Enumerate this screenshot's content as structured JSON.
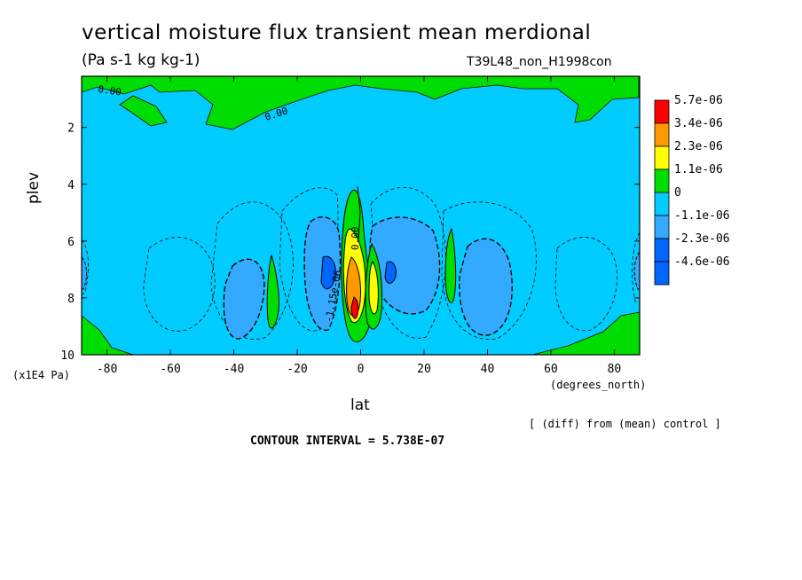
{
  "title": "vertical moisture flux transient mean merdional",
  "units": "(Pa s-1 kg kg-1)",
  "run_label": "T39L48_non_H1998con",
  "y_axis_unit": "(x1E4 Pa)",
  "x_axis_unit": "(degrees_north)",
  "diff_note": "[ (diff) from (mean) control ]",
  "contour_interval": "CONTOUR INTERVAL = 5.738E-07",
  "chart_data": {
    "type": "heatmap",
    "xlabel": "lat",
    "ylabel": "plev",
    "xlim": [
      -88,
      88
    ],
    "ylim": [
      10,
      0.2
    ],
    "x_ticks": [
      -80,
      -60,
      -40,
      -20,
      0,
      20,
      40,
      60,
      80
    ],
    "x_tick_labels": [
      "-80",
      "-60",
      "-40",
      "-20",
      "0",
      "20",
      "40",
      "60",
      "80"
    ],
    "y_ticks": [
      2,
      4,
      6,
      8,
      10
    ],
    "y_tick_labels": [
      "2",
      "4",
      "6",
      "8",
      "10"
    ],
    "legend": {
      "placement": "right",
      "entries": [
        {
          "label": "5.7e-06",
          "color": "#ff0000"
        },
        {
          "label": "3.4e-06",
          "color": "#ff9900"
        },
        {
          "label": "2.3e-06",
          "color": "#ffff00"
        },
        {
          "label": "1.1e-06",
          "color": "#00dd00"
        },
        {
          "label": "0",
          "color": "#00ccff"
        },
        {
          "label": "-1.1e-06",
          "color": "#33aaff"
        },
        {
          "label": "-2.3e-06",
          "color": "#0066ff"
        },
        {
          "label": "-4.6e-06",
          "color": "#0066ff"
        }
      ]
    },
    "contour_labels": [
      {
        "text": "0.00",
        "lat": -80,
        "plev": 0.8
      },
      {
        "text": "0.00",
        "lat": -25,
        "plev": 1.6
      },
      {
        "text": "0.00",
        "lat": 2,
        "plev": 5.6
      },
      {
        "text": "-1.15e-06",
        "lat": -8,
        "plev": 7.6
      }
    ],
    "features": [
      {
        "kind": "positive",
        "lat": 0,
        "plev": 7.5,
        "peak": 5.7e-06
      },
      {
        "kind": "negative",
        "lat": -40,
        "plev": 7.7
      },
      {
        "kind": "negative",
        "lat": 40,
        "plev": 7.4
      },
      {
        "kind": "negative",
        "lat": -10,
        "plev": 7.2
      },
      {
        "kind": "negative",
        "lat": 15,
        "plev": 7.2
      },
      {
        "kind": "positive",
        "lat": -27,
        "plev": 7.8
      },
      {
        "kind": "positive",
        "lat": 28,
        "plev": 7.2
      }
    ]
  }
}
